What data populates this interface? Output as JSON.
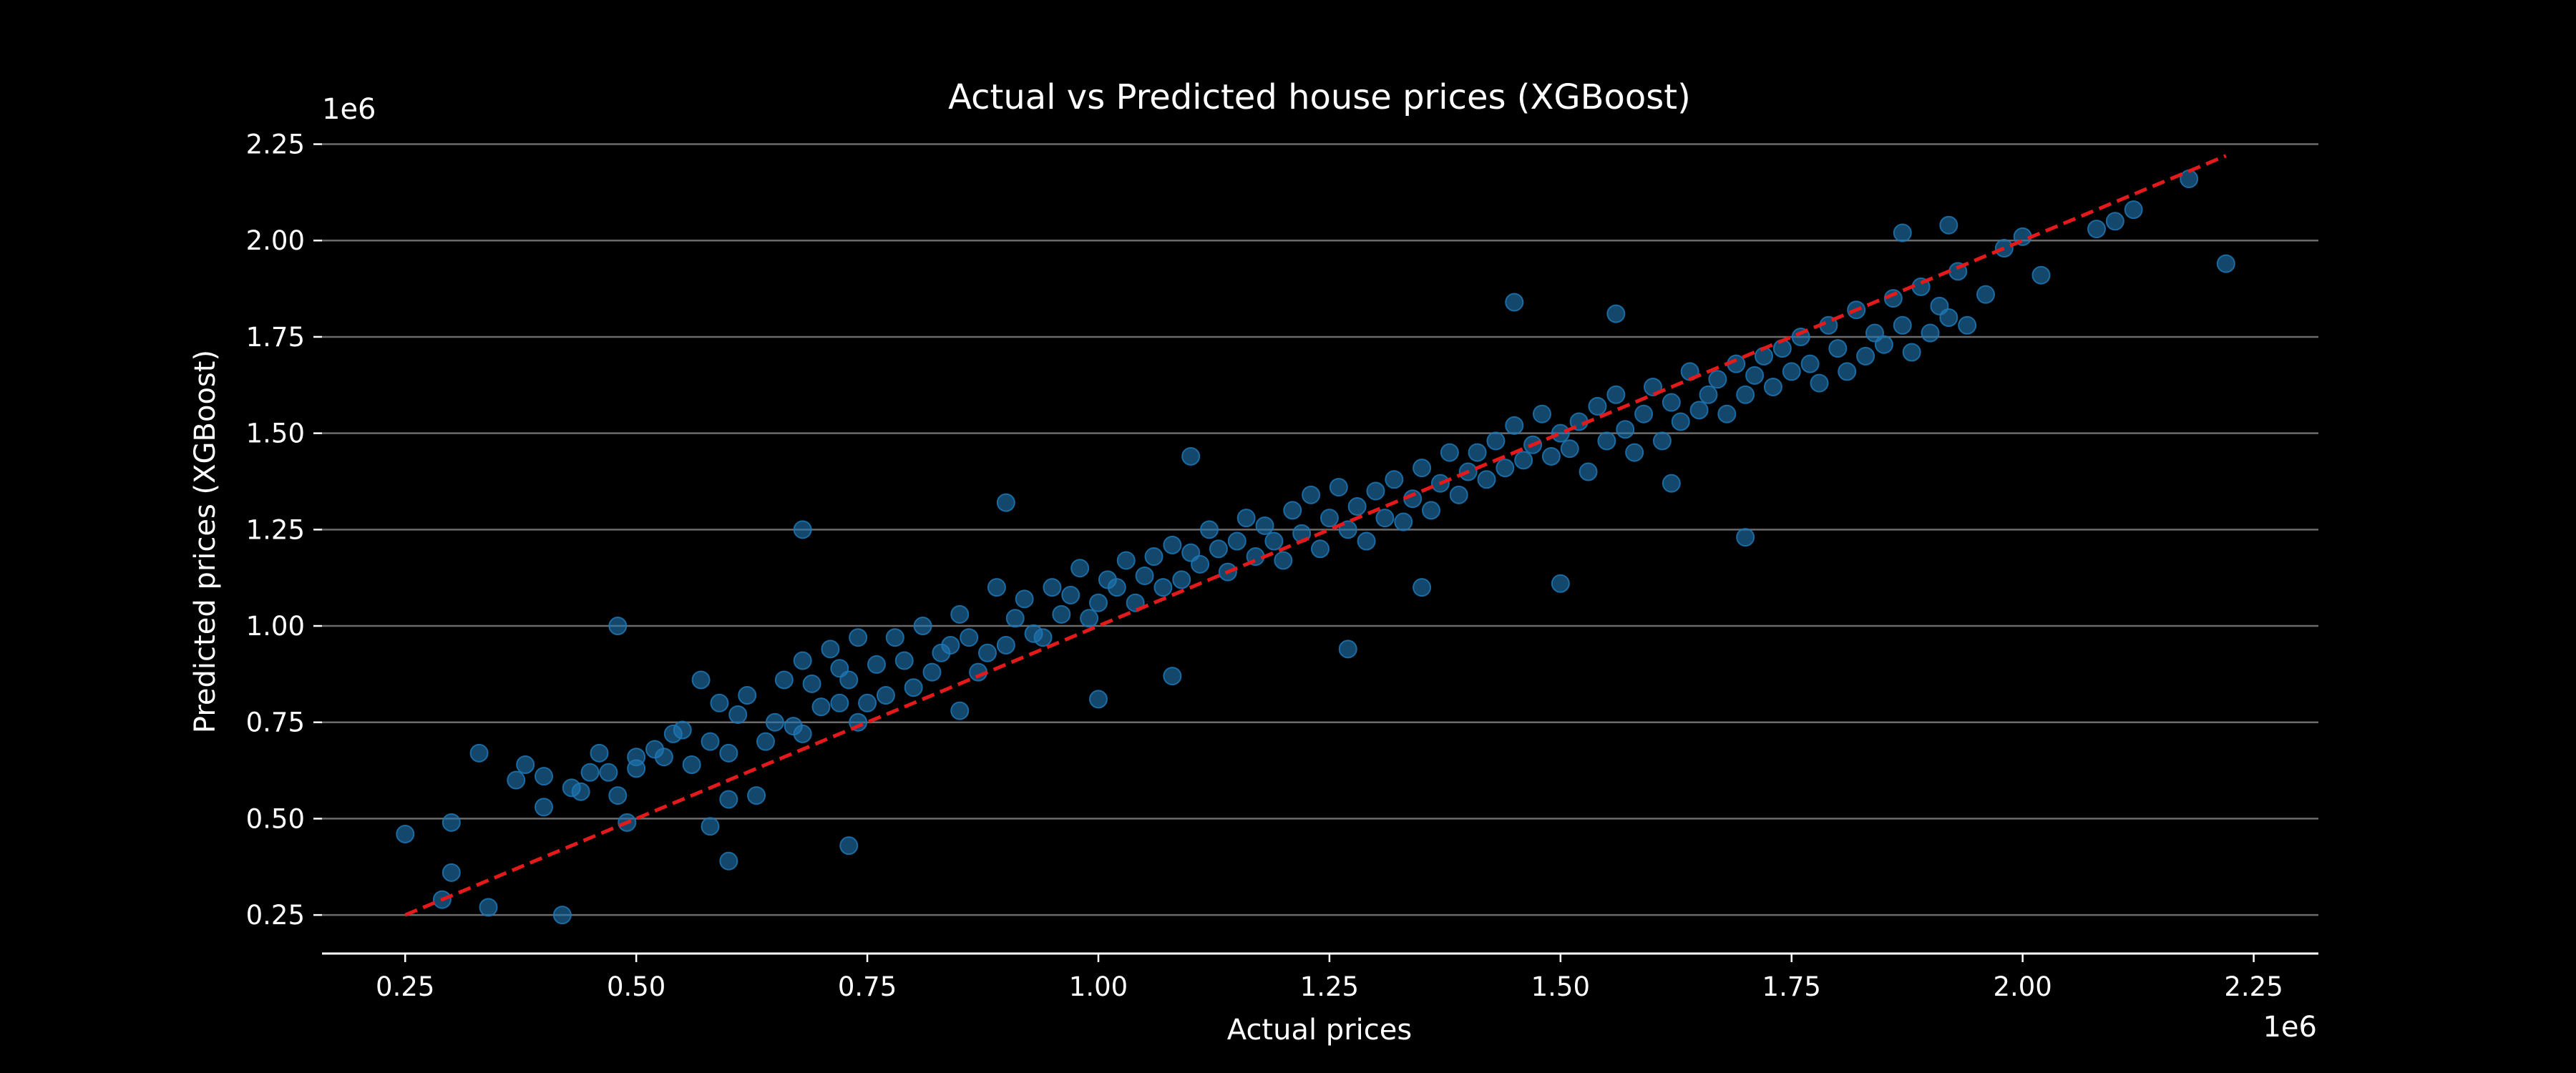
{
  "chart_data": {
    "type": "scatter",
    "title": "Actual vs Predicted house prices (XGBoost)",
    "xlabel": "Actual prices",
    "ylabel": "Predicted prices (XGBoost)",
    "x_offset_label": "1e6",
    "y_offset_label": "1e6",
    "xlim": [
      0.16,
      2.32
    ],
    "ylim": [
      0.15,
      2.29
    ],
    "x_ticks": [
      "0.25",
      "0.50",
      "0.75",
      "1.00",
      "1.25",
      "1.50",
      "1.75",
      "2.00",
      "2.25"
    ],
    "y_ticks": [
      "0.25",
      "0.50",
      "0.75",
      "1.00",
      "1.25",
      "1.50",
      "1.75",
      "2.00",
      "2.25"
    ],
    "grid": "horizontal",
    "colors": {
      "points": "#1f77b4",
      "reference_line": "#e31a1c",
      "background": "#000000",
      "text": "#ffffff",
      "grid": "#6b6b6b"
    },
    "reference_line": {
      "style": "dashed",
      "x": [
        0.25,
        2.22
      ],
      "y": [
        0.25,
        2.22
      ]
    },
    "series": [
      {
        "x": [
          0.25,
          0.29,
          0.3,
          0.3,
          0.34,
          0.33,
          0.42,
          0.37,
          0.38,
          0.4,
          0.4,
          0.43,
          0.44,
          0.45,
          0.46,
          0.47,
          0.48,
          0.49,
          0.5,
          0.5,
          0.52,
          0.53,
          0.54,
          0.55,
          0.56,
          0.57,
          0.58,
          0.58,
          0.59,
          0.6,
          0.6,
          0.61,
          0.62,
          0.63,
          0.64,
          0.65,
          0.66,
          0.67,
          0.68,
          0.69,
          0.68,
          0.7,
          0.71,
          0.72,
          0.72,
          0.73,
          0.74,
          0.74,
          0.75,
          0.76,
          0.77,
          0.78,
          0.79,
          0.8,
          0.81,
          0.82,
          0.83,
          0.84,
          0.85,
          0.86,
          0.87,
          0.88,
          0.89,
          0.9,
          0.91,
          0.92,
          0.93,
          0.94,
          0.95,
          0.96,
          0.97,
          0.98,
          0.99,
          1.0,
          1.01,
          1.02,
          1.03,
          1.04,
          1.05,
          1.06,
          1.07,
          1.08,
          1.09,
          1.1,
          1.11,
          1.12,
          1.13,
          1.14,
          1.15,
          1.16,
          1.17,
          1.18,
          1.19,
          1.2,
          1.21,
          1.22,
          1.23,
          1.24,
          1.25,
          1.26,
          1.27,
          1.28,
          1.29,
          1.3,
          1.31,
          1.32,
          1.33,
          1.34,
          1.35,
          1.36,
          1.37,
          1.38,
          1.39,
          1.4,
          1.41,
          1.42,
          1.43,
          1.44,
          1.45,
          1.46,
          1.47,
          1.48,
          1.49,
          1.5,
          1.51,
          1.52,
          1.53,
          1.54,
          1.55,
          1.56,
          1.57,
          1.58,
          1.59,
          1.6,
          1.61,
          1.62,
          1.63,
          1.64,
          1.65,
          1.66,
          1.67,
          1.68,
          1.69,
          1.7,
          1.71,
          1.72,
          1.73,
          1.74,
          1.75,
          1.76,
          1.77,
          1.78,
          1.79,
          1.8,
          1.81,
          1.82,
          1.83,
          1.84,
          1.85,
          1.86,
          1.87,
          1.88,
          1.89,
          1.9,
          1.91,
          1.92,
          1.93,
          1.94,
          1.96,
          1.98,
          2.0,
          2.02,
          2.08,
          2.1,
          2.12,
          2.18,
          2.22,
          0.48,
          0.68,
          0.73,
          0.9,
          1.0,
          1.08,
          1.27,
          1.45,
          1.5,
          1.7,
          1.56,
          1.87,
          1.92,
          0.6,
          0.85,
          1.1,
          1.35,
          1.62
        ],
        "y": [
          0.46,
          0.29,
          0.36,
          0.49,
          0.27,
          0.67,
          0.25,
          0.6,
          0.64,
          0.53,
          0.61,
          0.58,
          0.57,
          0.62,
          0.67,
          0.62,
          0.56,
          0.49,
          0.63,
          0.66,
          0.68,
          0.66,
          0.72,
          0.73,
          0.64,
          0.86,
          0.48,
          0.7,
          0.8,
          0.39,
          0.67,
          0.77,
          0.82,
          0.56,
          0.7,
          0.75,
          0.86,
          0.74,
          0.72,
          0.85,
          0.91,
          0.79,
          0.94,
          0.8,
          0.89,
          0.86,
          0.75,
          0.97,
          0.8,
          0.9,
          0.82,
          0.97,
          0.91,
          0.84,
          1.0,
          0.88,
          0.93,
          0.95,
          1.03,
          0.97,
          0.88,
          0.93,
          1.1,
          0.95,
          1.02,
          1.07,
          0.98,
          0.97,
          1.1,
          1.03,
          1.08,
          1.15,
          1.02,
          1.06,
          1.12,
          1.1,
          1.17,
          1.06,
          1.13,
          1.18,
          1.1,
          1.21,
          1.12,
          1.19,
          1.16,
          1.25,
          1.2,
          1.14,
          1.22,
          1.28,
          1.18,
          1.26,
          1.22,
          1.17,
          1.3,
          1.24,
          1.34,
          1.2,
          1.28,
          1.36,
          1.25,
          1.31,
          1.22,
          1.35,
          1.28,
          1.38,
          1.27,
          1.33,
          1.41,
          1.3,
          1.37,
          1.45,
          1.34,
          1.4,
          1.45,
          1.38,
          1.48,
          1.41,
          1.52,
          1.43,
          1.47,
          1.55,
          1.44,
          1.5,
          1.46,
          1.53,
          1.4,
          1.57,
          1.48,
          1.6,
          1.51,
          1.45,
          1.55,
          1.62,
          1.48,
          1.58,
          1.53,
          1.66,
          1.56,
          1.6,
          1.64,
          1.55,
          1.68,
          1.6,
          1.65,
          1.7,
          1.62,
          1.72,
          1.66,
          1.75,
          1.68,
          1.63,
          1.78,
          1.72,
          1.66,
          1.82,
          1.7,
          1.76,
          1.73,
          1.85,
          1.78,
          1.71,
          1.88,
          1.76,
          1.83,
          1.8,
          1.92,
          1.78,
          1.86,
          1.98,
          2.01,
          1.91,
          2.03,
          2.05,
          2.08,
          2.16,
          1.94,
          1.0,
          1.25,
          0.43,
          1.32,
          0.81,
          0.87,
          0.94,
          1.84,
          1.11,
          1.23,
          1.81,
          2.02,
          2.04,
          0.55,
          0.78,
          1.44,
          1.1,
          1.37
        ]
      }
    ]
  }
}
